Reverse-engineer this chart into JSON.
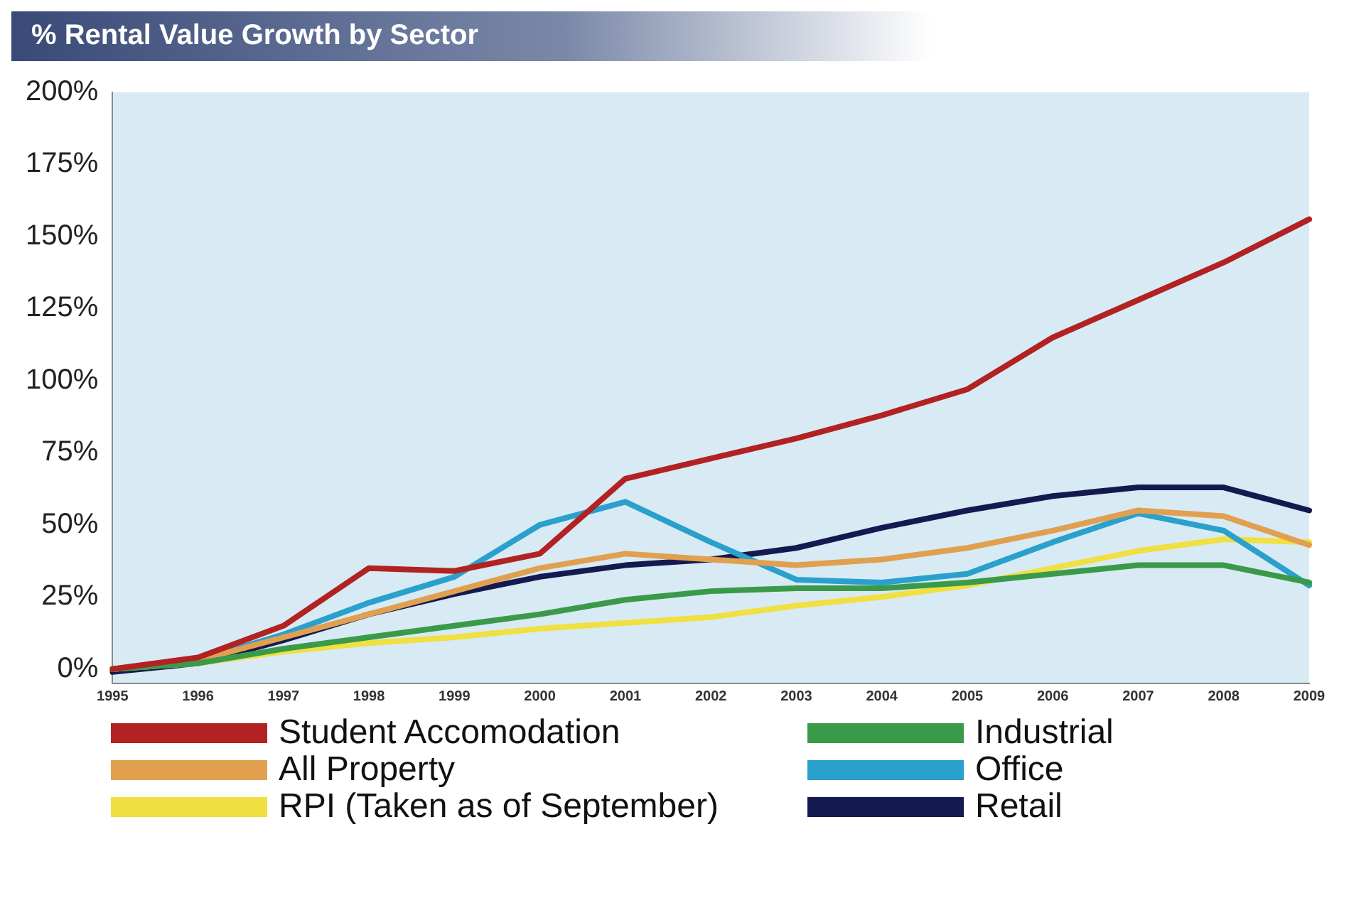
{
  "chart_data": {
    "type": "line",
    "title": "% Rental Value Growth by Sector",
    "categories": [
      "1995",
      "1996",
      "1997",
      "1998",
      "1999",
      "2000",
      "2001",
      "2002",
      "2003",
      "2004",
      "2005",
      "2006",
      "2007",
      "2008",
      "2009"
    ],
    "series": [
      {
        "name": "Student Accomodation",
        "color": "#b22222",
        "values": [
          0,
          4,
          15,
          35,
          34,
          40,
          66,
          73,
          80,
          88,
          97,
          115,
          128,
          141,
          156
        ]
      },
      {
        "name": "Industrial",
        "color": "#3a9a4a",
        "values": [
          0,
          2,
          7,
          11,
          15,
          19,
          24,
          27,
          28,
          28,
          30,
          33,
          36,
          36,
          30
        ]
      },
      {
        "name": "All Property",
        "color": "#e0a050",
        "values": [
          0,
          3,
          11,
          19,
          27,
          35,
          40,
          38,
          36,
          38,
          42,
          48,
          55,
          53,
          43
        ]
      },
      {
        "name": "Office",
        "color": "#2aa0cc",
        "values": [
          0,
          3,
          12,
          23,
          32,
          50,
          58,
          44,
          31,
          30,
          33,
          44,
          54,
          48,
          29
        ]
      },
      {
        "name": "RPI (Taken as of September)",
        "color": "#f0e040",
        "values": [
          0,
          2,
          6,
          9,
          11,
          14,
          16,
          18,
          22,
          25,
          29,
          35,
          41,
          45,
          44
        ]
      },
      {
        "name": "Retail",
        "color": "#141a50",
        "values": [
          -1,
          2,
          10,
          19,
          26,
          32,
          36,
          38,
          42,
          49,
          55,
          60,
          63,
          63,
          55
        ]
      }
    ],
    "ylim": [
      -5,
      200
    ],
    "yticks": [
      {
        "value": 0,
        "label": "0%"
      },
      {
        "value": 25,
        "label": "25%"
      },
      {
        "value": 50,
        "label": "50%"
      },
      {
        "value": 75,
        "label": "75%"
      },
      {
        "value": 100,
        "label": "100%"
      },
      {
        "value": 125,
        "label": "125%"
      },
      {
        "value": 150,
        "label": "150%"
      },
      {
        "value": 175,
        "label": "175%"
      },
      {
        "value": 200,
        "label": "200%"
      }
    ],
    "grid": false,
    "legend": "bottom",
    "marker": "none",
    "line_style": "solid"
  }
}
